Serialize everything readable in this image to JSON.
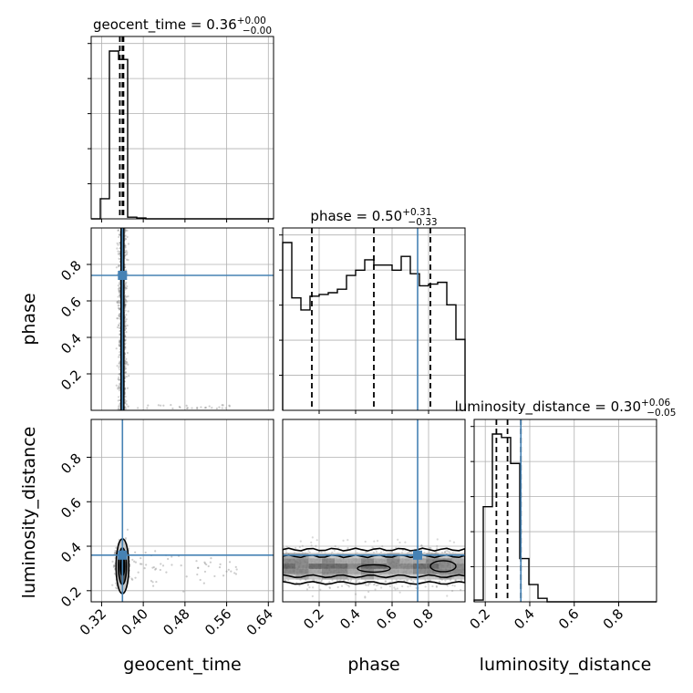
{
  "chart_data": {
    "type": "corner",
    "parameters": [
      {
        "name": "geocent_time",
        "range": [
          0.3,
          0.65
        ],
        "ticks": [
          "0.32",
          "0.40",
          "0.48",
          "0.56",
          "0.64"
        ],
        "tick_values": [
          0.32,
          0.4,
          0.48,
          0.56,
          0.64
        ]
      },
      {
        "name": "phase",
        "range": [
          0.0,
          1.0
        ],
        "ticks": [
          "0.2",
          "0.4",
          "0.6",
          "0.8"
        ],
        "tick_values": [
          0.2,
          0.4,
          0.6,
          0.8
        ]
      },
      {
        "name": "luminosity_distance",
        "range": [
          0.15,
          0.97
        ],
        "ticks": [
          "0.2",
          "0.4",
          "0.6",
          "0.8"
        ],
        "tick_values": [
          0.2,
          0.4,
          0.6,
          0.8
        ]
      }
    ],
    "titles": [
      {
        "param": "geocent_time",
        "label": "geocent_time = 0.36",
        "plus": "+0.00",
        "minus": "−0.00"
      },
      {
        "param": "phase",
        "label": "phase = 0.50",
        "plus": "+0.31",
        "minus": "−0.33"
      },
      {
        "param": "luminosity_distance",
        "label": "luminosity_distance = 0.30",
        "plus": "+0.06",
        "minus": "−0.05"
      }
    ],
    "truths": {
      "geocent_time": 0.36,
      "phase": 0.74,
      "luminosity_distance": 0.36
    },
    "truth_color": "#4682b4",
    "quantiles": {
      "geocent_time": [
        0.355,
        0.36,
        0.362
      ],
      "phase": [
        0.16,
        0.5,
        0.81
      ],
      "luminosity_distance": [
        0.25,
        0.3,
        0.36
      ]
    },
    "histograms": {
      "geocent_time": {
        "edges": [
          0.3,
          0.3175,
          0.335,
          0.3525,
          0.37,
          0.3875,
          0.405,
          0.4225,
          0.44,
          0.4575,
          0.475,
          0.4925,
          0.51,
          0.5275,
          0.545,
          0.5625,
          0.58,
          0.5975,
          0.615,
          0.6325,
          0.65
        ],
        "counts": [
          0,
          0.12,
          1.0,
          0.95,
          0.01,
          0.005,
          0,
          0,
          0,
          0,
          0,
          0,
          0,
          0,
          0,
          0,
          0,
          0,
          0,
          0
        ]
      },
      "phase": {
        "edges": [
          0.0,
          0.05,
          0.1,
          0.15,
          0.2,
          0.25,
          0.3,
          0.35,
          0.4,
          0.45,
          0.5,
          0.55,
          0.6,
          0.65,
          0.7,
          0.75,
          0.8,
          0.85,
          0.9,
          0.95,
          1.0
        ],
        "counts": [
          0.97,
          0.65,
          0.58,
          0.66,
          0.67,
          0.68,
          0.7,
          0.78,
          0.81,
          0.87,
          0.84,
          0.84,
          0.81,
          0.89,
          0.79,
          0.72,
          0.73,
          0.74,
          0.61,
          0.41
        ]
      },
      "luminosity_distance": {
        "edges": [
          0.15,
          0.191,
          0.232,
          0.273,
          0.314,
          0.355,
          0.396,
          0.437,
          0.478,
          0.519,
          0.56,
          0.601,
          0.642,
          0.683,
          0.724,
          0.765,
          0.806,
          0.847,
          0.888,
          0.929,
          0.97
        ],
        "counts": [
          0.01,
          0.55,
          0.97,
          0.95,
          0.8,
          0.25,
          0.1,
          0.02,
          0,
          0,
          0,
          0,
          0,
          0,
          0,
          0,
          0,
          0,
          0,
          0
        ]
      }
    },
    "grid": true,
    "colors": {
      "hist": "#000000",
      "grid": "#b0b0b0",
      "scatter": "#7f7f7f",
      "contour": "#000000",
      "truth": "#4682b4"
    }
  }
}
